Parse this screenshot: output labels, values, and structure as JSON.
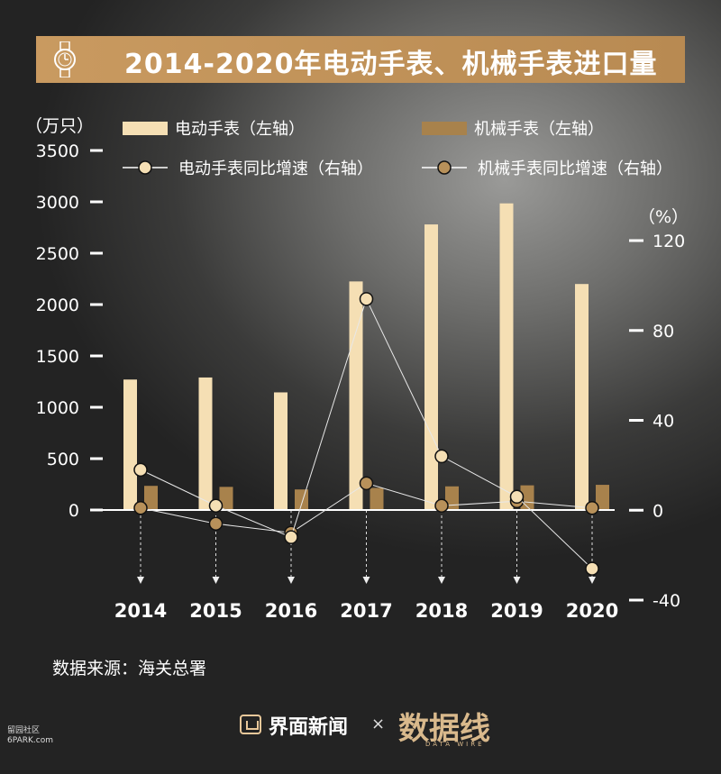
{
  "title": "2014-2020年电动手表、机械手表进口量",
  "source": "数据来源：海关总署",
  "footer": {
    "brand": "界面新闻",
    "times": "×",
    "brand2": "数据线",
    "brand2_sub": "DATA WIRE"
  },
  "corner": {
    "line1": "留园社区",
    "line2": "6PARK.com"
  },
  "colors": {
    "electric_bar": "#f5dfb4",
    "mechanical_bar": "#a8824c",
    "title_bg": "#c29458",
    "electric_dot": "#f5dfb4",
    "mechanical_dot": "#b8915a"
  },
  "chart_data": {
    "type": "bar",
    "categories": [
      "2014",
      "2015",
      "2016",
      "2017",
      "2018",
      "2019",
      "2020"
    ],
    "left_axis": {
      "unit": "（万只）",
      "ylim": [
        0,
        3500
      ],
      "ticks": [
        "3500",
        "3000",
        "2500",
        "2000",
        "1500",
        "1000",
        "500",
        "0"
      ]
    },
    "right_axis": {
      "unit": "（%）",
      "ylim": [
        -40,
        120
      ],
      "ticks": [
        "120",
        "80",
        "40",
        "0",
        "-40"
      ]
    },
    "legend_position": "top",
    "series": [
      {
        "name": "电动手表（左轴）",
        "kind": "bar",
        "axis": "left",
        "values": [
          1270,
          1290,
          1145,
          2225,
          2780,
          2985,
          2200
        ]
      },
      {
        "name": "机械手表（左轴）",
        "kind": "bar",
        "axis": "left",
        "values": [
          235,
          225,
          200,
          215,
          230,
          240,
          245
        ]
      },
      {
        "name": "电动手表同比增速（右轴）",
        "kind": "line",
        "axis": "right",
        "values": [
          18,
          2,
          -12,
          94,
          24,
          6,
          -26
        ]
      },
      {
        "name": "机械手表同比增速（右轴）",
        "kind": "line",
        "axis": "right",
        "values": [
          1,
          -6,
          -10,
          12,
          2,
          4,
          1
        ]
      }
    ]
  }
}
